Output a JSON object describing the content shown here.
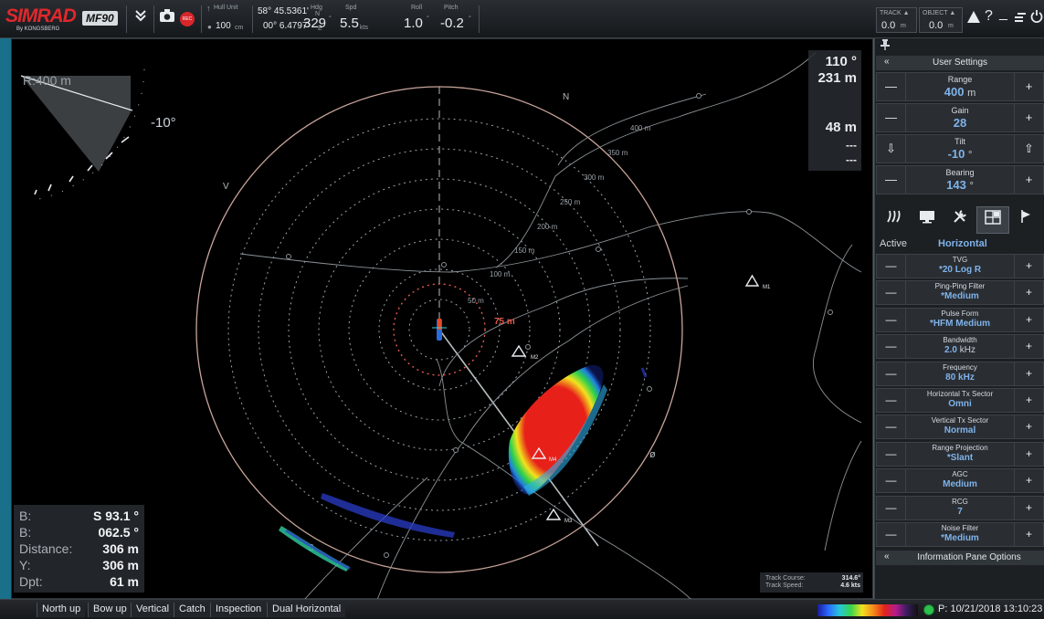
{
  "topbar": {
    "brand": "SIMRAD",
    "brand_sub": "By KONGSBERG",
    "model": "MF90",
    "menu_icon": "double-chevron-down-icon",
    "camera_icon": "camera-icon",
    "record_icon": "record-icon",
    "record_label": "REC",
    "hull_unit": {
      "label": "Hull Unit",
      "value": "100",
      "unit": "cm"
    },
    "position": {
      "lat": "58° 45.5361'",
      "lat_hemi": "N",
      "lon": "00° 6.4797'",
      "lon_hemi": "E"
    },
    "heading": {
      "label": "Hdg",
      "value": "329",
      "unit": "°"
    },
    "speed": {
      "label": "Spd",
      "value": "5.5",
      "unit": "kts"
    },
    "roll": {
      "label": "Roll",
      "value": "1.0",
      "unit": "°"
    },
    "pitch": {
      "label": "Pitch",
      "value": "-0.2",
      "unit": "°"
    },
    "track_counter": {
      "label": "TRACK ▲",
      "value": "0.0",
      "unit": "m"
    },
    "object_counter": {
      "label": "OBJECT ▲",
      "value": "0.0",
      "unit": "m"
    },
    "alarm_icon": "warning-triangle-icon",
    "help_label": "?",
    "minimize_label": "_",
    "window_icon": "window-restore-icon",
    "power_icon": "power-icon"
  },
  "sonar": {
    "range_label": "R:400 m",
    "tilt_label": "-10°",
    "north_label": "N",
    "v_label": "V",
    "s_label": "S",
    "o_label": "ø",
    "ring_labels": [
      "50 m",
      "100 m",
      "150 m",
      "200 m",
      "250 m",
      "300 m",
      "350 m",
      "400 m"
    ],
    "marker_range": "75 m",
    "markers": [
      "M1",
      "M2",
      "M3",
      "M4"
    ],
    "info_bearing": "110 °",
    "info_range": "231 m",
    "info_depth": "48 m",
    "info_dash1": "---",
    "info_dash2": "---",
    "cursor": {
      "b1_label": "B:",
      "b1_value": "S 93.1 °",
      "b2_label": "B:",
      "b2_value": "062.5 °",
      "dist_label": "Distance:",
      "dist_value": "306 m",
      "y_label": "Y:",
      "y_value": "306 m",
      "dpt_label": "Dpt:",
      "dpt_value": "61 m"
    },
    "track": {
      "course_label": "Track Course:",
      "course_value": "314.6°",
      "speed_label": "Track Speed:",
      "speed_value": "4.6 kts"
    }
  },
  "side": {
    "pin_icon": "pin-icon",
    "user_settings_title": "User Settings",
    "collapse_label": "«",
    "range": {
      "name": "Range",
      "value": "400",
      "unit": "m"
    },
    "gain": {
      "name": "Gain",
      "value": "28"
    },
    "tilt": {
      "name": "Tilt",
      "value": "-10",
      "unit": "°"
    },
    "bearing": {
      "name": "Bearing",
      "value": "143",
      "unit": "°"
    },
    "tabs": [
      "sonar-waves-icon",
      "monitor-icon",
      "tools-icon",
      "layout-icon",
      "flag-icon"
    ],
    "active_label": "Active",
    "active_value": "Horizontal",
    "settings": [
      {
        "name": "TVG",
        "value": "*20 Log R"
      },
      {
        "name": "Ping-Ping Filter",
        "value": "*Medium"
      },
      {
        "name": "Pulse Form",
        "value": "*HFM Medium"
      },
      {
        "name": "Bandwidth",
        "value": "2.0",
        "unit": "kHz"
      },
      {
        "name": "Frequency",
        "value": "80 kHz"
      },
      {
        "name": "Horizontal Tx Sector",
        "value": "Omni"
      },
      {
        "name": "Vertical Tx Sector",
        "value": "Normal"
      },
      {
        "name": "Range Projection",
        "value": "*Slant"
      },
      {
        "name": "AGC",
        "value": "Medium"
      },
      {
        "name": "RCG",
        "value": "7"
      },
      {
        "name": "Noise Filter",
        "value": "*Medium"
      }
    ],
    "info_pane_title": "Information Pane Options"
  },
  "bottom": {
    "tabs": [
      "North up",
      "Bow up",
      "Vertical",
      "Catch",
      "Inspection",
      "Dual Horizontal"
    ],
    "status": "P: 10/21/2018  13:10:23"
  }
}
